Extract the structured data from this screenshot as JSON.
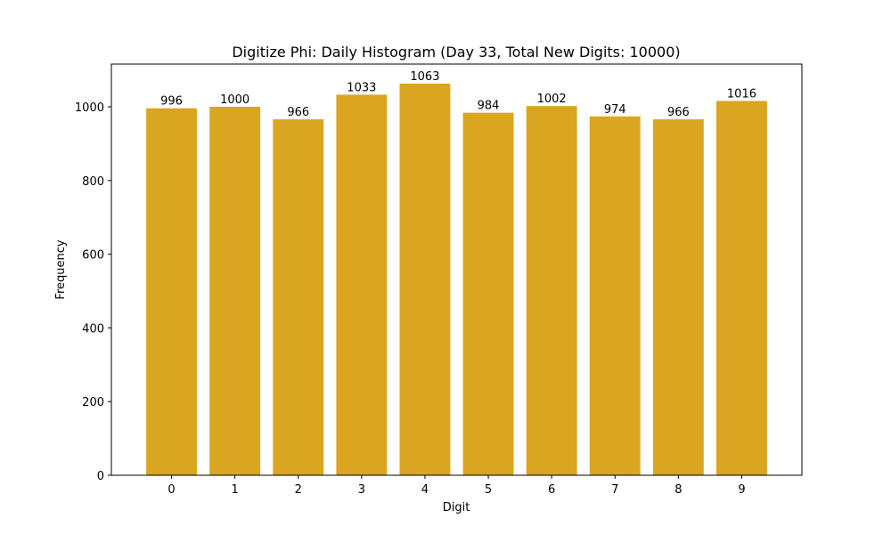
{
  "chart_data": {
    "type": "bar",
    "title": "Digitize Phi: Daily Histogram (Day 33, Total New Digits: 10000)",
    "xlabel": "Digit",
    "ylabel": "Frequency",
    "categories": [
      "0",
      "1",
      "2",
      "3",
      "4",
      "5",
      "6",
      "7",
      "8",
      "9"
    ],
    "values": [
      996,
      1000,
      966,
      1033,
      1063,
      984,
      1002,
      974,
      966,
      1016
    ],
    "data_labels": [
      "996",
      "1000",
      "966",
      "1033",
      "1063",
      "984",
      "1002",
      "974",
      "966",
      "1016"
    ],
    "ylim": [
      0,
      1116
    ],
    "yticks": [
      0,
      200,
      400,
      600,
      800,
      1000
    ],
    "ytick_labels": [
      "0",
      "200",
      "400",
      "600",
      "800",
      "1000"
    ],
    "grid": false,
    "legend": null,
    "bar_color": "#DAA520"
  }
}
